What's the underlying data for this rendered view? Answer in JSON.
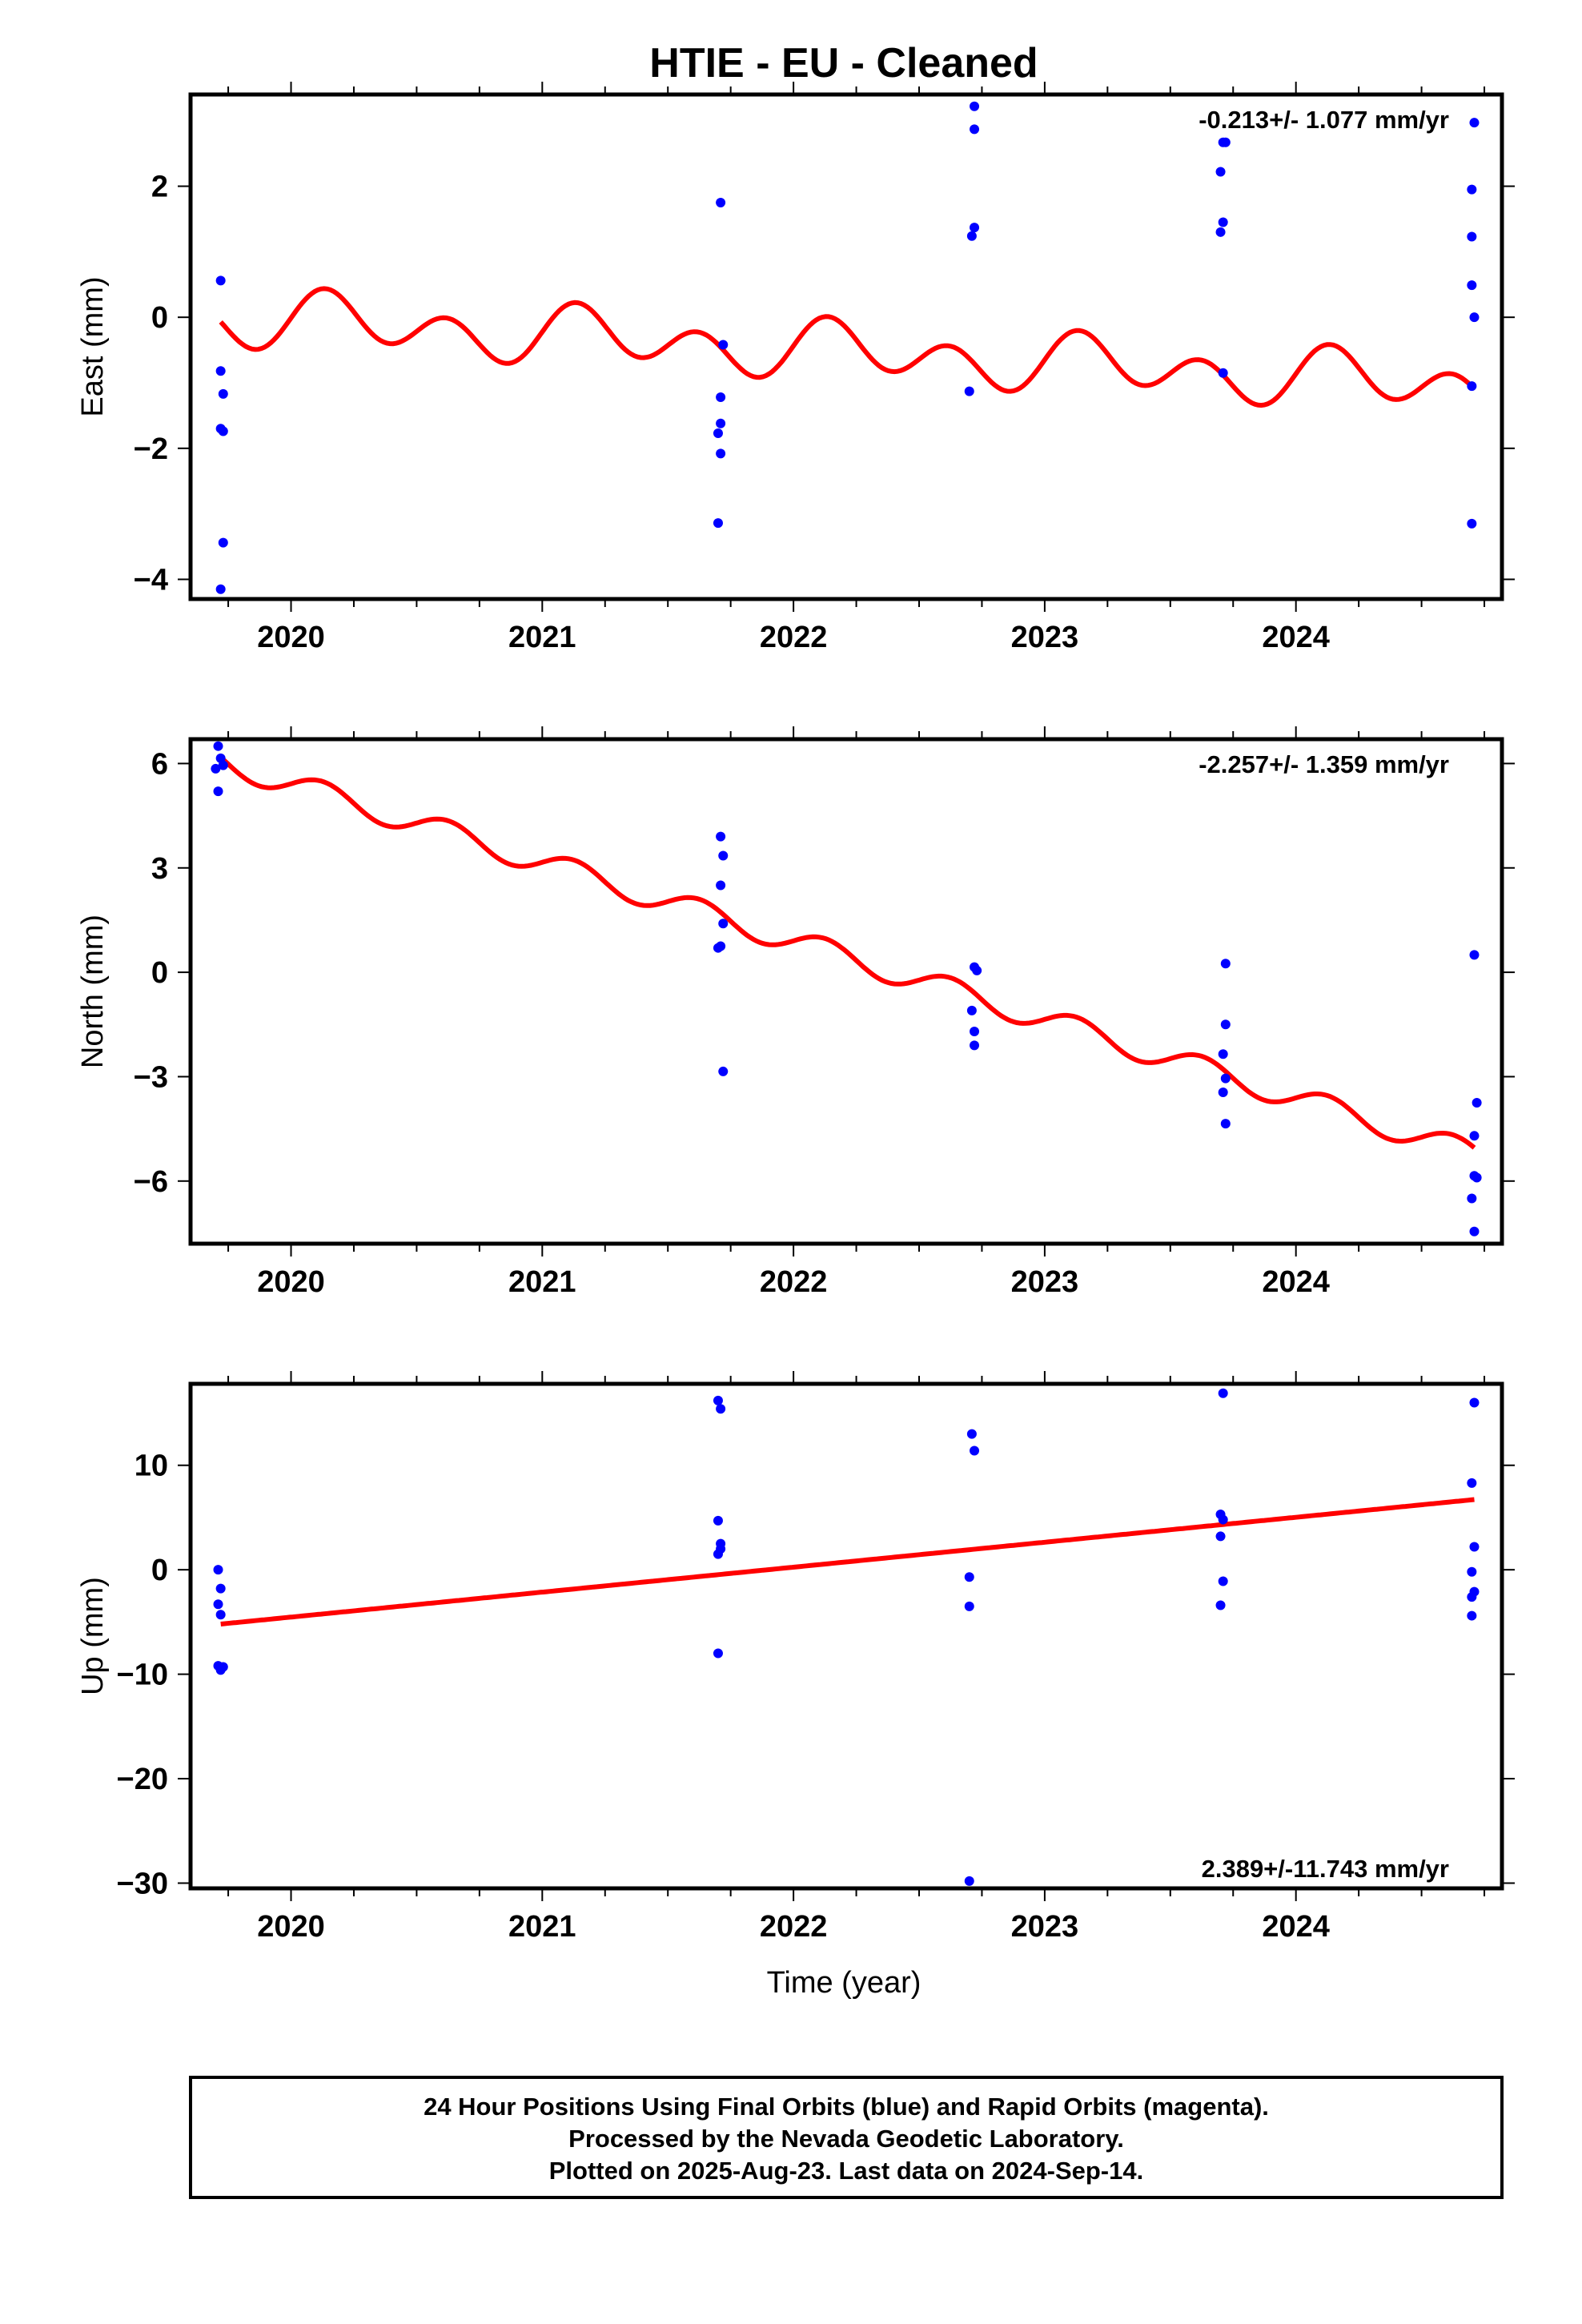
{
  "title": "HTIE  - EU - Cleaned",
  "colors": {
    "points": "#0000ff",
    "fit": "#ff0000",
    "frame": "#000000"
  },
  "xlabel": "Time (year)",
  "footer": {
    "line1": "24 Hour Positions Using Final Orbits (blue) and Rapid Orbits (magenta).",
    "line2": "Processed by the Nevada Geodetic Laboratory.",
    "line3": "Plotted on 2025-Aug-23. Last data on 2024-Sep-14."
  },
  "chart_data": [
    {
      "type": "scatter",
      "name": "east",
      "ylabel": "East (mm)",
      "xlim": [
        2019.6,
        2024.82
      ],
      "ylim": [
        -4.3,
        3.4
      ],
      "yticks": [
        -4,
        -2,
        0,
        2
      ],
      "ytick_labels": [
        "−4",
        "−2",
        "0",
        "2"
      ],
      "xticks": [
        2020,
        2021,
        2022,
        2023,
        2024
      ],
      "xtick_labels": [
        "2020",
        "2021",
        "2022",
        "2023",
        "2024"
      ],
      "rate_text": "-0.213+/- 1.077 mm/yr",
      "rate_position": "top",
      "fit": {
        "intercept": 0.0,
        "rate": -0.213,
        "t0": 2019.72,
        "annual": {
          "a": 0.2,
          "phase": 0.25
        },
        "semiannual": {
          "a": 0.35,
          "phase": 0.0
        }
      },
      "points": [
        [
          2019.72,
          0.56
        ],
        [
          2019.72,
          -0.82
        ],
        [
          2019.73,
          -1.17
        ],
        [
          2019.72,
          -1.7
        ],
        [
          2019.73,
          -1.74
        ],
        [
          2019.73,
          -3.44
        ],
        [
          2019.72,
          -4.15
        ],
        [
          2021.71,
          1.75
        ],
        [
          2021.72,
          -0.42
        ],
        [
          2021.71,
          -1.22
        ],
        [
          2021.71,
          -1.62
        ],
        [
          2021.7,
          -1.77
        ],
        [
          2021.71,
          -2.08
        ],
        [
          2021.7,
          -3.14
        ],
        [
          2022.72,
          3.22
        ],
        [
          2022.72,
          2.87
        ],
        [
          2022.72,
          1.37
        ],
        [
          2022.71,
          1.24
        ],
        [
          2022.7,
          -1.13
        ],
        [
          2023.71,
          2.67
        ],
        [
          2023.72,
          2.67
        ],
        [
          2023.7,
          2.22
        ],
        [
          2023.71,
          1.45
        ],
        [
          2023.7,
          1.3
        ],
        [
          2023.71,
          -0.85
        ],
        [
          2024.71,
          2.97
        ],
        [
          2024.7,
          1.95
        ],
        [
          2024.7,
          1.23
        ],
        [
          2024.7,
          0.49
        ],
        [
          2024.71,
          0.0
        ],
        [
          2024.7,
          -1.05
        ],
        [
          2024.7,
          -3.15
        ]
      ]
    },
    {
      "type": "scatter",
      "name": "north",
      "ylabel": "North (mm)",
      "xlim": [
        2019.6,
        2024.82
      ],
      "ylim": [
        -7.8,
        6.7
      ],
      "yticks": [
        -6,
        -3,
        0,
        3,
        6
      ],
      "ytick_labels": [
        "−6",
        "−3",
        "0",
        "3",
        "6"
      ],
      "xticks": [
        2020,
        2021,
        2022,
        2023,
        2024
      ],
      "xtick_labels": [
        "2020",
        "2021",
        "2022",
        "2023",
        "2024"
      ],
      "rate_text": "-2.257+/- 1.359 mm/yr",
      "rate_position": "top",
      "fit": {
        "intercept": 6.05,
        "rate": -2.257,
        "t0": 2019.72,
        "annual": {
          "a": 0.0,
          "phase": 0.0
        },
        "semiannual": {
          "a": 0.35,
          "phase": 0.0
        }
      },
      "points": [
        [
          2019.71,
          6.5
        ],
        [
          2019.72,
          6.15
        ],
        [
          2019.73,
          5.95
        ],
        [
          2019.7,
          5.85
        ],
        [
          2019.71,
          5.2
        ],
        [
          2021.71,
          3.9
        ],
        [
          2021.72,
          3.35
        ],
        [
          2021.71,
          2.5
        ],
        [
          2021.72,
          1.4
        ],
        [
          2021.71,
          0.75
        ],
        [
          2021.7,
          0.7
        ],
        [
          2021.72,
          -2.85
        ],
        [
          2022.72,
          0.15
        ],
        [
          2022.73,
          0.05
        ],
        [
          2022.71,
          -1.1
        ],
        [
          2022.72,
          -1.7
        ],
        [
          2022.72,
          -2.1
        ],
        [
          2023.72,
          0.25
        ],
        [
          2023.72,
          -1.5
        ],
        [
          2023.71,
          -2.35
        ],
        [
          2023.72,
          -3.05
        ],
        [
          2023.71,
          -3.45
        ],
        [
          2023.72,
          -4.35
        ],
        [
          2024.71,
          0.5
        ],
        [
          2024.72,
          -3.75
        ],
        [
          2024.71,
          -4.7
        ],
        [
          2024.71,
          -5.85
        ],
        [
          2024.72,
          -5.9
        ],
        [
          2024.7,
          -6.5
        ],
        [
          2024.71,
          -7.45
        ]
      ]
    },
    {
      "type": "scatter",
      "name": "up",
      "ylabel": "Up (mm)",
      "xlim": [
        2019.6,
        2024.82
      ],
      "ylim": [
        -30.5,
        17.8
      ],
      "yticks": [
        -30,
        -20,
        -10,
        0,
        10
      ],
      "ytick_labels": [
        "−30",
        "−20",
        "−10",
        "0",
        "10"
      ],
      "xticks": [
        2020,
        2021,
        2022,
        2023,
        2024
      ],
      "xtick_labels": [
        "2020",
        "2021",
        "2022",
        "2023",
        "2024"
      ],
      "rate_text": "2.389+/-11.743 mm/yr",
      "rate_position": "bottom",
      "fit": {
        "intercept": -5.2,
        "rate": 2.389,
        "t0": 2019.72,
        "annual": {
          "a": 0.0,
          "phase": 0.0
        },
        "semiannual": {
          "a": 0.0,
          "phase": 0.0
        }
      },
      "points": [
        [
          2019.71,
          0.0
        ],
        [
          2019.72,
          -1.8
        ],
        [
          2019.71,
          -3.3
        ],
        [
          2019.72,
          -4.3
        ],
        [
          2019.71,
          -9.2
        ],
        [
          2019.72,
          -9.6
        ],
        [
          2019.73,
          -9.3
        ],
        [
          2021.7,
          16.2
        ],
        [
          2021.71,
          15.4
        ],
        [
          2021.7,
          4.7
        ],
        [
          2021.71,
          2.5
        ],
        [
          2021.71,
          2.0
        ],
        [
          2021.7,
          1.5
        ],
        [
          2021.7,
          -8.0
        ],
        [
          2022.71,
          13.0
        ],
        [
          2022.72,
          11.4
        ],
        [
          2022.7,
          -0.7
        ],
        [
          2022.7,
          -3.5
        ],
        [
          2022.7,
          -29.8
        ],
        [
          2023.71,
          16.9
        ],
        [
          2023.7,
          5.3
        ],
        [
          2023.71,
          4.8
        ],
        [
          2023.7,
          3.2
        ],
        [
          2023.71,
          -1.1
        ],
        [
          2023.7,
          -3.4
        ],
        [
          2024.71,
          16.0
        ],
        [
          2024.7,
          8.3
        ],
        [
          2024.71,
          2.2
        ],
        [
          2024.7,
          -0.2
        ],
        [
          2024.71,
          -2.1
        ],
        [
          2024.7,
          -2.6
        ],
        [
          2024.7,
          -4.4
        ]
      ]
    }
  ]
}
